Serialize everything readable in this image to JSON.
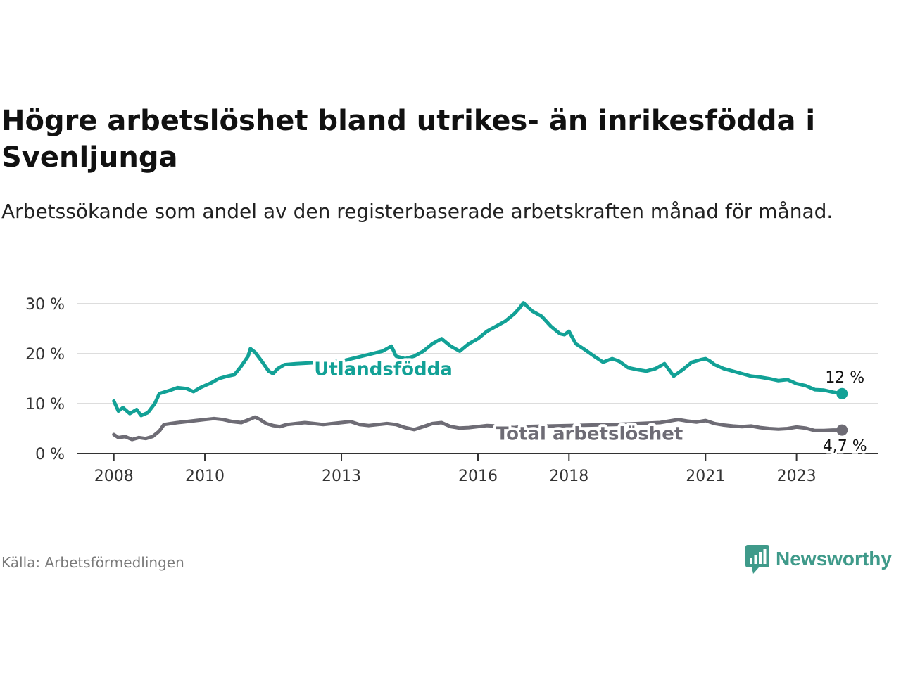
{
  "title": "Högre arbetslöshet bland utrikes- än inrikesfödda i Svenljunga",
  "subtitle": "Arbetssökande som andel av den registerbaserade arbetskraften månad för månad.",
  "source": "Källa: Arbetsförmedlingen",
  "brand": {
    "name": "Newsworthy",
    "color": "#3f9a8a"
  },
  "colors": {
    "foreign": "#12a196",
    "total": "#6e6c75",
    "grid": "#dddddd",
    "axis": "#333333"
  },
  "chart_data": {
    "type": "line",
    "title": "Högre arbetslöshet bland utrikes- än inrikesfödda i Svenljunga",
    "xlabel": "",
    "ylabel": "",
    "ylim": [
      0,
      30
    ],
    "xlim": [
      2007.2,
      2024.8
    ],
    "yticks": [
      {
        "value": 0,
        "label": "0 %"
      },
      {
        "value": 10,
        "label": "10 %"
      },
      {
        "value": 20,
        "label": "20 %"
      },
      {
        "value": 30,
        "label": "30 %"
      }
    ],
    "xticks": [
      {
        "value": 2008,
        "label": "2008"
      },
      {
        "value": 2010,
        "label": "2010"
      },
      {
        "value": 2013,
        "label": "2013"
      },
      {
        "value": 2016,
        "label": "2016"
      },
      {
        "value": 2018,
        "label": "2018"
      },
      {
        "value": 2021,
        "label": "2021"
      },
      {
        "value": 2023,
        "label": "2023"
      }
    ],
    "series": [
      {
        "name": "Utlandsfödda",
        "color": "#12a196",
        "end_label": "12 %",
        "x": [
          2008.0,
          2008.1,
          2008.2,
          2008.35,
          2008.5,
          2008.6,
          2008.75,
          2008.9,
          2009.0,
          2009.1,
          2009.25,
          2009.4,
          2009.6,
          2009.75,
          2009.9,
          2010.0,
          2010.15,
          2010.3,
          2010.5,
          2010.65,
          2010.8,
          2010.95,
          2011.0,
          2011.1,
          2011.25,
          2011.4,
          2011.5,
          2011.6,
          2011.75,
          2012.0,
          2013.0,
          2013.9,
          2014.0,
          2014.1,
          2014.2,
          2014.4,
          2014.6,
          2014.7,
          2014.8,
          2015.0,
          2015.2,
          2015.4,
          2015.6,
          2015.8,
          2016.0,
          2016.2,
          2016.4,
          2016.6,
          2016.8,
          2016.9,
          2017.0,
          2017.1,
          2017.2,
          2017.4,
          2017.6,
          2017.8,
          2017.9,
          2018.0,
          2018.15,
          2018.35,
          2018.55,
          2018.75,
          2018.95,
          2019.1,
          2019.3,
          2019.5,
          2019.7,
          2019.9,
          2020.1,
          2020.3,
          2020.5,
          2020.7,
          2020.9,
          2021.0,
          2021.1,
          2021.2,
          2021.4,
          2021.6,
          2021.8,
          2022.0,
          2022.2,
          2022.4,
          2022.6,
          2022.8,
          2023.0,
          2023.2,
          2023.4,
          2023.6,
          2023.8,
          2024.0
        ],
        "y": [
          10.5,
          8.5,
          9.2,
          8.0,
          8.8,
          7.6,
          8.2,
          10.0,
          12.0,
          12.3,
          12.7,
          13.2,
          13.0,
          12.4,
          13.2,
          13.6,
          14.2,
          15.0,
          15.5,
          15.8,
          17.5,
          19.5,
          21.0,
          20.3,
          18.5,
          16.5,
          16.0,
          17.0,
          17.8,
          18.0,
          18.5,
          20.5,
          21.0,
          21.5,
          19.5,
          19.0,
          19.5,
          20.0,
          20.5,
          22.0,
          23.0,
          21.5,
          20.5,
          22.0,
          23.0,
          24.5,
          25.5,
          26.5,
          28.0,
          29.0,
          30.2,
          29.3,
          28.5,
          27.5,
          25.5,
          24.0,
          23.8,
          24.5,
          22.0,
          20.8,
          19.5,
          18.3,
          19.0,
          18.5,
          17.2,
          16.8,
          16.5,
          17.0,
          18.0,
          15.5,
          16.8,
          18.3,
          18.8,
          19.0,
          18.5,
          17.8,
          17.0,
          16.5,
          16.0,
          15.5,
          15.3,
          15.0,
          14.6,
          14.8,
          14.0,
          13.6,
          12.8,
          12.7,
          12.3,
          12.0
        ]
      },
      {
        "name": "Total arbetslöshet",
        "color": "#6e6c75",
        "end_label": "4,7 %",
        "x": [
          2008.0,
          2008.1,
          2008.25,
          2008.4,
          2008.55,
          2008.7,
          2008.85,
          2009.0,
          2009.1,
          2009.25,
          2009.4,
          2009.6,
          2009.8,
          2010.0,
          2010.2,
          2010.4,
          2010.6,
          2010.8,
          2011.0,
          2011.1,
          2011.2,
          2011.35,
          2011.5,
          2011.65,
          2011.8,
          2012.0,
          2012.2,
          2012.4,
          2012.6,
          2012.8,
          2013.0,
          2013.2,
          2013.4,
          2013.6,
          2013.8,
          2014.0,
          2014.2,
          2014.4,
          2014.6,
          2014.8,
          2015.0,
          2015.2,
          2015.4,
          2015.6,
          2015.8,
          2016.0,
          2016.2,
          2016.4,
          2016.6,
          2016.8,
          2017.0,
          2018.0,
          2019.0,
          2020.0,
          2020.4,
          2020.6,
          2020.8,
          2021.0,
          2021.2,
          2021.4,
          2021.6,
          2021.8,
          2022.0,
          2022.2,
          2022.4,
          2022.6,
          2022.8,
          2023.0,
          2023.2,
          2023.4,
          2023.6,
          2023.8,
          2024.0
        ],
        "y": [
          3.8,
          3.2,
          3.4,
          2.8,
          3.2,
          3.0,
          3.4,
          4.5,
          5.8,
          6.0,
          6.2,
          6.4,
          6.6,
          6.8,
          7.0,
          6.8,
          6.4,
          6.2,
          6.9,
          7.3,
          6.9,
          6.0,
          5.6,
          5.4,
          5.8,
          6.0,
          6.2,
          6.0,
          5.8,
          6.0,
          6.2,
          6.4,
          5.8,
          5.6,
          5.8,
          6.0,
          5.8,
          5.2,
          4.8,
          5.4,
          6.0,
          6.2,
          5.4,
          5.1,
          5.2,
          5.4,
          5.6,
          5.5,
          5.3,
          5.2,
          5.4,
          5.6,
          5.8,
          6.2,
          6.8,
          6.5,
          6.3,
          6.6,
          6.0,
          5.7,
          5.5,
          5.4,
          5.5,
          5.2,
          5.0,
          4.9,
          5.0,
          5.3,
          5.1,
          4.6,
          4.6,
          4.7,
          4.7
        ]
      }
    ],
    "annotations": [
      {
        "text": "Utlandsfödda",
        "series": "Utlandsfödda",
        "color": "#12a196"
      },
      {
        "text": "Total arbetslöshet",
        "series": "Total arbetslöshet",
        "color": "#6e6c75"
      }
    ]
  }
}
